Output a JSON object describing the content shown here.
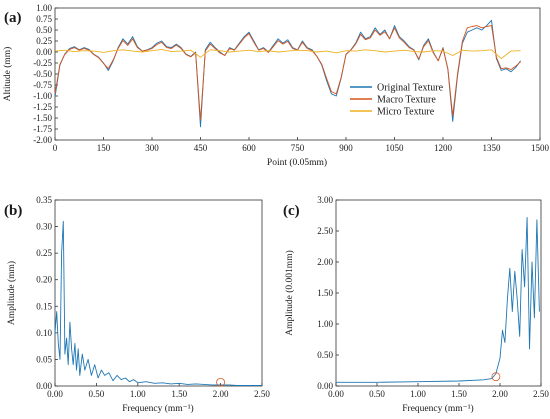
{
  "chart_data": [
    {
      "panel_label": "(a)",
      "type": "line",
      "xlabel": "Point (0.05mm)",
      "ylabel": "Altitude (mm)",
      "xlim": [
        0,
        1500
      ],
      "ylim": [
        -2.0,
        1.0
      ],
      "xticks": [
        0,
        150,
        300,
        450,
        600,
        750,
        900,
        1050,
        1200,
        1350,
        1500
      ],
      "xtick_labels": [
        "0",
        "150",
        "300",
        "450",
        "600",
        "750",
        "900",
        "1050",
        "1200",
        "1350",
        "1500"
      ],
      "yticks": [
        -2.0,
        -1.75,
        -1.5,
        -1.25,
        -1.0,
        -0.75,
        -0.5,
        -0.25,
        0.0,
        0.25,
        0.5,
        0.75,
        1.0
      ],
      "ytick_labels": [
        "-2.00",
        "-1.75",
        "-1.50",
        "-1.25",
        "-1.00",
        "-0.75",
        "-0.50",
        "-0.25",
        "0.00",
        "0.25",
        "0.50",
        "0.75",
        "1.00"
      ],
      "grid": false,
      "legend_position": "center-right",
      "series": [
        {
          "name": "Original Texture",
          "color": "#1f77b4",
          "x": [
            0,
            15,
            30,
            45,
            60,
            75,
            90,
            105,
            120,
            135,
            150,
            165,
            180,
            195,
            210,
            225,
            240,
            255,
            270,
            285,
            300,
            315,
            330,
            345,
            360,
            375,
            390,
            405,
            420,
            435,
            450,
            465,
            480,
            495,
            510,
            525,
            540,
            555,
            570,
            585,
            600,
            615,
            630,
            645,
            660,
            675,
            690,
            705,
            720,
            735,
            750,
            765,
            780,
            795,
            810,
            825,
            840,
            855,
            870,
            885,
            900,
            915,
            930,
            945,
            960,
            975,
            990,
            1005,
            1020,
            1035,
            1050,
            1065,
            1080,
            1095,
            1110,
            1125,
            1140,
            1155,
            1170,
            1185,
            1200,
            1215,
            1230,
            1245,
            1260,
            1275,
            1290,
            1305,
            1320,
            1335,
            1350,
            1365,
            1380,
            1395,
            1410,
            1425,
            1440
          ],
          "values": [
            -1.02,
            -0.3,
            -0.05,
            0.08,
            0.12,
            0.05,
            0.1,
            0.06,
            -0.05,
            -0.12,
            -0.25,
            -0.42,
            -0.2,
            0.1,
            0.3,
            0.18,
            0.35,
            0.12,
            0.02,
            0.05,
            0.1,
            0.2,
            0.25,
            0.12,
            0.1,
            0.18,
            0.1,
            -0.05,
            -0.1,
            0.0,
            -1.7,
            0.05,
            0.22,
            0.1,
            0.0,
            -0.08,
            0.1,
            0.05,
            0.2,
            0.35,
            0.45,
            0.25,
            0.05,
            0.1,
            0.0,
            0.15,
            0.3,
            0.2,
            0.28,
            0.1,
            0.05,
            0.25,
            0.1,
            0.05,
            -0.1,
            -0.3,
            -0.65,
            -0.95,
            -1.0,
            -0.6,
            -0.05,
            0.05,
            0.2,
            0.45,
            0.3,
            0.35,
            0.55,
            0.4,
            0.5,
            0.3,
            0.6,
            0.35,
            0.25,
            0.12,
            0.05,
            -0.18,
            0.15,
            0.3,
            0.0,
            -0.2,
            0.1,
            -0.4,
            -1.58,
            -0.55,
            0.2,
            0.45,
            0.5,
            0.55,
            0.5,
            0.6,
            0.72,
            -0.15,
            -0.42,
            -0.38,
            -0.45,
            -0.35,
            -0.2
          ]
        },
        {
          "name": "Macro Texture",
          "color": "#d9541a",
          "x": [
            0,
            15,
            30,
            45,
            60,
            75,
            90,
            105,
            120,
            135,
            150,
            165,
            180,
            195,
            210,
            225,
            240,
            255,
            270,
            285,
            300,
            315,
            330,
            345,
            360,
            375,
            390,
            405,
            420,
            435,
            450,
            465,
            480,
            495,
            510,
            525,
            540,
            555,
            570,
            585,
            600,
            615,
            630,
            645,
            660,
            675,
            690,
            705,
            720,
            735,
            750,
            765,
            780,
            795,
            810,
            825,
            840,
            855,
            870,
            885,
            900,
            915,
            930,
            945,
            960,
            975,
            990,
            1005,
            1020,
            1035,
            1050,
            1065,
            1080,
            1095,
            1110,
            1125,
            1140,
            1155,
            1170,
            1185,
            1200,
            1215,
            1230,
            1245,
            1260,
            1275,
            1290,
            1305,
            1320,
            1335,
            1350,
            1365,
            1380,
            1395,
            1410,
            1425,
            1440
          ],
          "values": [
            -0.95,
            -0.28,
            -0.06,
            0.06,
            0.1,
            0.04,
            0.08,
            0.04,
            -0.06,
            -0.13,
            -0.26,
            -0.38,
            -0.18,
            0.08,
            0.26,
            0.15,
            0.3,
            0.1,
            0.02,
            0.04,
            0.08,
            0.17,
            0.22,
            0.1,
            0.08,
            0.16,
            0.08,
            -0.06,
            -0.11,
            -0.02,
            -1.55,
            0.02,
            0.18,
            0.08,
            -0.02,
            -0.08,
            0.08,
            0.04,
            0.18,
            0.32,
            0.42,
            0.22,
            0.04,
            0.08,
            -0.01,
            0.12,
            0.26,
            0.18,
            0.24,
            0.08,
            0.04,
            0.22,
            0.08,
            0.03,
            -0.1,
            -0.28,
            -0.6,
            -0.9,
            -0.95,
            -0.58,
            -0.06,
            0.04,
            0.18,
            0.4,
            0.28,
            0.32,
            0.5,
            0.38,
            0.46,
            0.3,
            0.55,
            0.32,
            0.22,
            0.1,
            0.04,
            -0.16,
            0.12,
            0.26,
            -0.02,
            -0.2,
            0.08,
            -0.38,
            -1.45,
            -0.5,
            0.25,
            0.55,
            0.58,
            0.6,
            0.55,
            0.58,
            0.6,
            -0.12,
            -0.38,
            -0.36,
            -0.4,
            -0.32,
            -0.22
          ]
        },
        {
          "name": "Micro Texture",
          "color": "#edb120",
          "x": [
            0,
            30,
            60,
            90,
            120,
            150,
            180,
            210,
            240,
            270,
            300,
            330,
            360,
            390,
            420,
            450,
            480,
            510,
            540,
            570,
            600,
            630,
            660,
            690,
            720,
            750,
            780,
            810,
            840,
            870,
            900,
            930,
            960,
            990,
            1020,
            1050,
            1080,
            1110,
            1140,
            1170,
            1200,
            1230,
            1260,
            1290,
            1320,
            1350,
            1380,
            1410,
            1440
          ],
          "values": [
            0.02,
            0.04,
            0.01,
            0.03,
            0.02,
            -0.01,
            0.03,
            0.05,
            0.02,
            0.0,
            0.03,
            0.06,
            0.01,
            0.02,
            0.04,
            -0.12,
            0.05,
            0.03,
            0.0,
            0.02,
            0.04,
            0.01,
            0.03,
            0.0,
            0.02,
            0.04,
            0.03,
            0.0,
            0.02,
            -0.02,
            0.03,
            0.02,
            0.05,
            0.03,
            0.0,
            0.02,
            0.04,
            0.01,
            0.0,
            0.03,
            0.02,
            -0.08,
            0.04,
            0.02,
            0.03,
            0.05,
            -0.15,
            0.02,
            0.03
          ]
        }
      ]
    },
    {
      "panel_label": "(b)",
      "type": "line",
      "xlabel": "Frequency (mm⁻¹)",
      "ylabel": "Amplitude (mm)",
      "xlim": [
        0,
        2.5
      ],
      "ylim": [
        0,
        0.35
      ],
      "xticks": [
        0,
        0.5,
        1.0,
        1.5,
        2.0,
        2.5
      ],
      "xtick_labels": [
        "0.00",
        "0.50",
        "1.00",
        "1.50",
        "2.00",
        "2.50"
      ],
      "yticks": [
        0,
        0.05,
        0.1,
        0.15,
        0.2,
        0.25,
        0.3,
        0.35
      ],
      "ytick_labels": [
        "0.00",
        "0.05",
        "0.10",
        "0.15",
        "0.20",
        "0.25",
        "0.30",
        "0.35"
      ],
      "grid": false,
      "marker": {
        "x": 2.0,
        "y": 0.007,
        "color": "#d9541a"
      },
      "series": [
        {
          "color": "#1f77b4",
          "x": [
            0.0,
            0.02,
            0.04,
            0.06,
            0.08,
            0.1,
            0.12,
            0.14,
            0.16,
            0.18,
            0.2,
            0.22,
            0.24,
            0.26,
            0.28,
            0.3,
            0.33,
            0.36,
            0.4,
            0.44,
            0.48,
            0.52,
            0.56,
            0.6,
            0.65,
            0.7,
            0.75,
            0.8,
            0.85,
            0.9,
            0.95,
            1.0,
            1.1,
            1.2,
            1.3,
            1.4,
            1.5,
            1.6,
            1.7,
            1.8,
            1.9,
            2.0,
            2.1,
            2.2,
            2.3,
            2.4,
            2.5
          ],
          "values": [
            0.1,
            0.14,
            0.08,
            0.05,
            0.25,
            0.31,
            0.06,
            0.09,
            0.04,
            0.12,
            0.07,
            0.04,
            0.08,
            0.03,
            0.07,
            0.02,
            0.06,
            0.03,
            0.05,
            0.02,
            0.04,
            0.015,
            0.03,
            0.02,
            0.025,
            0.01,
            0.02,
            0.012,
            0.015,
            0.008,
            0.012,
            0.006,
            0.008,
            0.005,
            0.006,
            0.004,
            0.005,
            0.003,
            0.004,
            0.003,
            0.002,
            0.002,
            0.002,
            0.001,
            0.001,
            0.001,
            0.001
          ]
        }
      ]
    },
    {
      "panel_label": "(c)",
      "type": "line",
      "xlabel": "Frequency (mm⁻¹)",
      "ylabel": "Amplitude (0.001mm)",
      "xlim": [
        0,
        2.5
      ],
      "ylim": [
        0,
        3.0
      ],
      "xticks": [
        0,
        0.5,
        1.0,
        1.5,
        2.0,
        2.5
      ],
      "xtick_labels": [
        "0.00",
        "0.50",
        "1.00",
        "1.50",
        "2.00",
        "2.50"
      ],
      "yticks": [
        0,
        0.5,
        1.0,
        1.5,
        2.0,
        2.5,
        3.0
      ],
      "ytick_labels": [
        "0.00",
        "0.50",
        "1.00",
        "1.50",
        "2.00",
        "2.50",
        "3.00"
      ],
      "grid": false,
      "marker": {
        "x": 1.95,
        "y": 0.15,
        "color": "#d9541a"
      },
      "series": [
        {
          "color": "#1f77b4",
          "x": [
            0.0,
            0.5,
            1.0,
            1.5,
            1.8,
            1.9,
            1.95,
            2.0,
            2.03,
            2.06,
            2.09,
            2.12,
            2.15,
            2.18,
            2.21,
            2.24,
            2.27,
            2.3,
            2.33,
            2.36,
            2.39,
            2.42,
            2.45,
            2.48
          ],
          "values": [
            0.06,
            0.06,
            0.07,
            0.08,
            0.1,
            0.12,
            0.2,
            0.45,
            0.9,
            0.7,
            1.4,
            1.9,
            1.2,
            1.85,
            1.4,
            0.8,
            2.2,
            1.6,
            2.72,
            0.6,
            2.0,
            1.1,
            2.68,
            1.2
          ]
        }
      ]
    }
  ]
}
